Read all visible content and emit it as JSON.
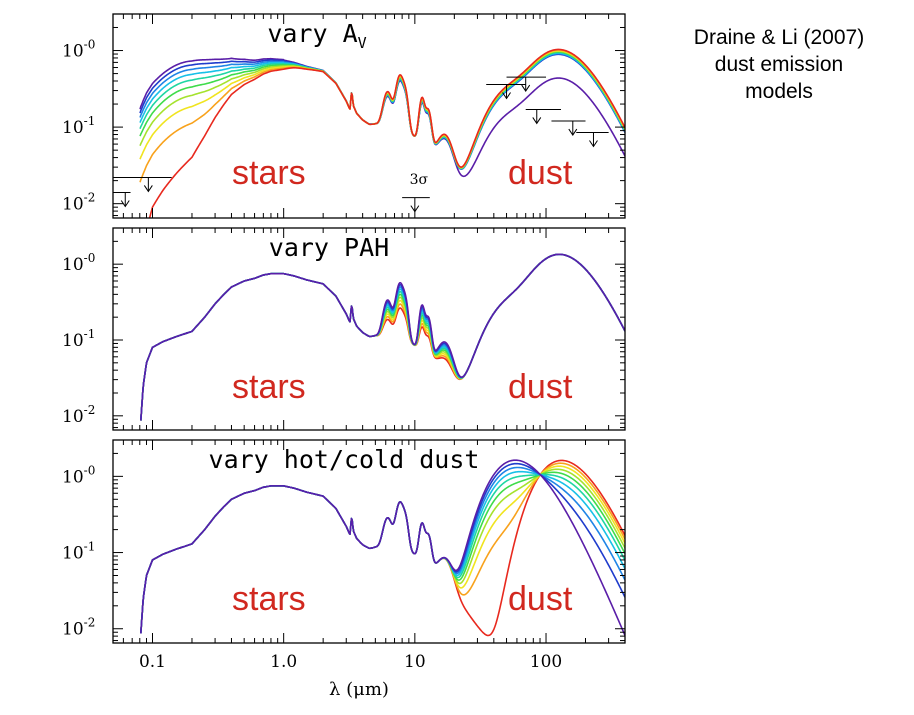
{
  "annotation": {
    "lines": [
      "Draine & Li (2007)",
      "dust emission",
      "models"
    ]
  },
  "colors": {
    "region_text": "#d1281f",
    "sequence": [
      "#5a1ea8",
      "#1f3ccc",
      "#1f85e6",
      "#17c0e8",
      "#1fd6a3",
      "#3fdc4a",
      "#a5e22e",
      "#f0e41f",
      "#f8a21c",
      "#e8291e"
    ],
    "stellar_only": "#c4541e"
  },
  "chart_data": {
    "type": "line",
    "xscale": "log",
    "yscale": "log",
    "xlim": [
      0.05,
      400
    ],
    "ylim": [
      0.0065,
      3.0
    ],
    "xlabel": "λ (μm)",
    "xticks": [
      {
        "value": 0.1,
        "label": "0.1"
      },
      {
        "value": 1.0,
        "label": "1.0"
      },
      {
        "value": 10,
        "label": "10"
      },
      {
        "value": 100,
        "label": "100"
      }
    ],
    "yticks": [
      {
        "value": 1.0,
        "base": "10",
        "exp": "-0"
      },
      {
        "value": 0.1,
        "base": "10",
        "exp": "-1"
      },
      {
        "value": 0.01,
        "base": "10",
        "exp": "-2"
      }
    ],
    "panels": [
      {
        "title_main": "vary A",
        "title_sub": "V",
        "labels": [
          "stars",
          "dust"
        ],
        "n_models": 10,
        "upper_limits": [
          {
            "x1": 0.05,
            "x2": 0.068,
            "y": 0.014,
            "arrow_x": 0.062
          },
          {
            "x1": 0.05,
            "x2": 0.14,
            "y": 0.022,
            "arrow_x": 0.093
          },
          {
            "x1": 35,
            "x2": 70,
            "y": 0.36,
            "arrow_x": 50
          },
          {
            "x1": 50,
            "x2": 100,
            "y": 0.45,
            "arrow_x": 70
          },
          {
            "x1": 70,
            "x2": 130,
            "y": 0.17,
            "arrow_x": 85
          },
          {
            "x1": 110,
            "x2": 200,
            "y": 0.12,
            "arrow_x": 160
          },
          {
            "x1": 170,
            "x2": 300,
            "y": 0.085,
            "arrow_x": 230
          },
          {
            "x1": 8,
            "x2": 13,
            "y": 0.012,
            "arrow_x": 10
          }
        ],
        "sigma_label": "3σ",
        "sigma_at": {
          "x": 10,
          "y": 0.018
        }
      },
      {
        "title_main": "vary PAH",
        "title_sub": "",
        "labels": [
          "stars",
          "dust"
        ],
        "n_models": 10
      },
      {
        "title_main": "vary hot/cold dust",
        "title_sub": "",
        "labels": [
          "stars",
          "dust"
        ],
        "n_models": 10
      }
    ],
    "stellar_base": {
      "x": [
        0.0805,
        0.085,
        0.09,
        0.1,
        0.12,
        0.15,
        0.2,
        0.25,
        0.3,
        0.35,
        0.4,
        0.5,
        0.6,
        0.7,
        0.8,
        1.0,
        1.2,
        1.5,
        2.0,
        2.5,
        3.0,
        3.2,
        3.3,
        3.4,
        3.6,
        4.0,
        4.5,
        5.0
      ],
      "y": [
        0.0065,
        0.025,
        0.05,
        0.08,
        0.095,
        0.11,
        0.13,
        0.2,
        0.3,
        0.4,
        0.5,
        0.6,
        0.65,
        0.72,
        0.75,
        0.75,
        0.7,
        0.62,
        0.55,
        0.38,
        0.22,
        0.17,
        0.3,
        0.19,
        0.15,
        0.12,
        0.1,
        0.095
      ]
    },
    "pah_features": [
      {
        "x": 6.2,
        "amp": 1.6,
        "w": 0.03
      },
      {
        "x": 7.7,
        "amp": 3.2,
        "w": 0.028
      },
      {
        "x": 8.6,
        "amp": 1.4,
        "w": 0.02
      },
      {
        "x": 11.3,
        "amp": 1.6,
        "w": 0.02
      },
      {
        "x": 12.7,
        "amp": 0.9,
        "w": 0.02
      },
      {
        "x": 17,
        "amp": 0.4,
        "w": 0.05
      }
    ],
    "silicate_dip": {
      "x": 9.7,
      "depth": 0.5,
      "w": 0.035
    }
  }
}
